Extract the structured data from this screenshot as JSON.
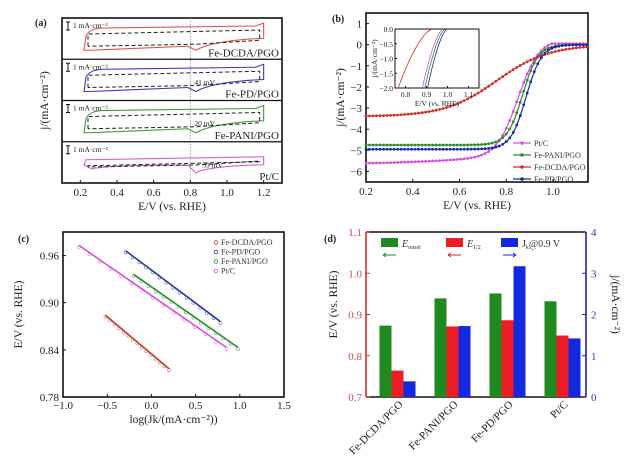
{
  "chart_data": [
    {
      "panel": "(a)",
      "type": "line",
      "title": "",
      "xlabel": "E/V (vs. RHE)",
      "ylabel": "j/(mA·cm⁻²)",
      "xlim": [
        0.1,
        1.3
      ],
      "xticks": [
        "0.2",
        "0.4",
        "0.6",
        "0.8",
        "1.0",
        "1.2"
      ],
      "reference_line_x": 0.8,
      "scale_bar_label": "1 mA·cm⁻²",
      "subpanels": [
        {
          "name": "Fe-DCDA/PGO",
          "color": "#d9534f",
          "shift_label": ""
        },
        {
          "name": "Fe-PD/PGO",
          "color": "#3b3bb0",
          "shift_label": "41 mV"
        },
        {
          "name": "Fe-PANI/PGO",
          "color": "#3a9a3a",
          "shift_label": "20 mV"
        },
        {
          "name": "Pt/C",
          "color": "#d65fd6",
          "shift_label": "39 mV"
        }
      ]
    },
    {
      "panel": "(b)",
      "type": "line",
      "xlabel": "E/V (vs. RHE)",
      "ylabel": "j/(mA·cm⁻²)",
      "xlim": [
        0.2,
        1.15
      ],
      "ylim": [
        -6.5,
        1.5
      ],
      "xticks": [
        "0.2",
        "0.4",
        "0.6",
        "0.8",
        "1.0"
      ],
      "yticks": [
        "1",
        "0",
        "-1",
        "-2",
        "-3",
        "-4",
        "-5",
        "-6"
      ],
      "legend_position": "bottom-right",
      "series": [
        {
          "name": "Pt/C",
          "color": "#d94fd9",
          "marker": "circle",
          "limiting_current": -5.6,
          "half_wave": 0.85,
          "onset": 0.93
        },
        {
          "name": "Fe-PANI/PGO",
          "color": "#2e8b2e",
          "marker": "triangle-up",
          "limiting_current": -4.75,
          "half_wave": 0.87,
          "onset": 0.94
        },
        {
          "name": "Fe-DCDA/PGO",
          "color": "#d0302a",
          "marker": "diamond",
          "limiting_current": -3.4,
          "half_wave": 0.76,
          "onset": 0.87
        },
        {
          "name": "Fe-PD/PGO",
          "color": "#1a2a9a",
          "marker": "triangle-down",
          "limiting_current": -4.95,
          "half_wave": 0.885,
          "onset": 0.95
        }
      ],
      "inset": {
        "xlabel": "E/V (vs. RHE)",
        "ylabel": "j/(mA·cm⁻²)",
        "xlim": [
          0.75,
          1.15
        ],
        "ylim": [
          -2.0,
          0.0
        ],
        "xticks": [
          "0.8",
          "0.9",
          "1.0",
          "1.1"
        ],
        "yticks": [
          "0.0",
          "-0.5",
          "-1.0",
          "-1.5",
          "-2.0"
        ]
      }
    },
    {
      "panel": "(c)",
      "type": "scatter",
      "xlabel": "log(Jk/(mA·cm⁻²))",
      "ylabel": "E/V (vs. RHE)",
      "xlim": [
        -1.0,
        1.5
      ],
      "ylim": [
        0.78,
        0.99
      ],
      "xticks": [
        "-1.0",
        "-0.5",
        "0.0",
        "0.5",
        "1.0",
        "1.5"
      ],
      "yticks": [
        "0.78",
        "0.84",
        "0.90",
        "0.96"
      ],
      "legend_position": "top-right",
      "series": [
        {
          "name": "Fe-DCDA/PGO",
          "color": "#c0392b",
          "marker": "square",
          "x": [
            -0.52,
            0.2
          ],
          "y": [
            0.884,
            0.816
          ]
        },
        {
          "name": "Fe-PD/PGO",
          "color": "#2a3a9a",
          "marker": "triangle-down",
          "x": [
            -0.29,
            0.78
          ],
          "y": [
            0.966,
            0.876
          ]
        },
        {
          "name": "Fe-PANI/PGO",
          "color": "#2e8b2e",
          "marker": "circle",
          "x": [
            -0.2,
            0.98
          ],
          "y": [
            0.936,
            0.843
          ]
        },
        {
          "name": "Pt/C",
          "color": "#d94fd9",
          "marker": "circle",
          "x": [
            -0.82,
            0.85
          ],
          "y": [
            0.973,
            0.843
          ]
        }
      ]
    },
    {
      "panel": "(d)",
      "type": "bar",
      "categories": [
        "Fe-DCDA/PGO",
        "Fe-PANI/PGO",
        "Fe-PD/PGO",
        "Pt/C"
      ],
      "ylabel": "E/V (vs. RHE)",
      "ylabel_right": "j/(mA·cm⁻²)",
      "ylim": [
        0.7,
        1.1
      ],
      "ylim_right": [
        0,
        4
      ],
      "yticks": [
        "0.7",
        "0.8",
        "0.9",
        "1.0",
        "1.1"
      ],
      "yticks_right": [
        "0",
        "1",
        "2",
        "3",
        "4"
      ],
      "legend_position": "top",
      "series": [
        {
          "name": "E_onset",
          "label_main": "E",
          "label_sub": "onset",
          "axis": "left",
          "color": "#1f8a1f",
          "values": [
            0.873,
            0.939,
            0.951,
            0.932
          ]
        },
        {
          "name": "E_1/2",
          "label_main": "E",
          "label_sub": "1/2",
          "axis": "left",
          "color": "#ee1c25",
          "values": [
            0.764,
            0.871,
            0.886,
            0.849
          ]
        },
        {
          "name": "Jk@0.9 V",
          "label_main": "J",
          "label_sub": "k",
          "label_tail": "@0.9 V",
          "axis": "right",
          "color": "#1428e0",
          "values": [
            0.38,
            1.72,
            3.17,
            1.42
          ]
        }
      ]
    }
  ]
}
